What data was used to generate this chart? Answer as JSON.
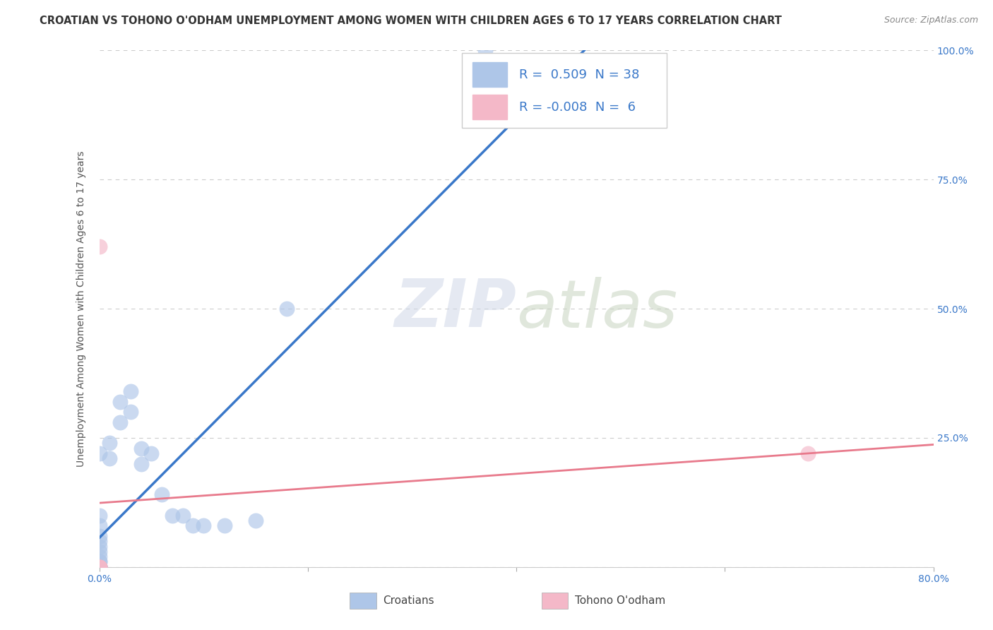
{
  "title": "CROATIAN VS TOHONO O'ODHAM UNEMPLOYMENT AMONG WOMEN WITH CHILDREN AGES 6 TO 17 YEARS CORRELATION CHART",
  "source": "Source: ZipAtlas.com",
  "ylabel": "Unemployment Among Women with Children Ages 6 to 17 years",
  "xlim": [
    0.0,
    0.8
  ],
  "ylim": [
    0.0,
    1.0
  ],
  "croatian_R": 0.509,
  "croatian_N": 38,
  "tohono_R": -0.008,
  "tohono_N": 6,
  "croatian_color": "#aec6e8",
  "tohono_color": "#f4b8c8",
  "croatian_line_color": "#3a78c9",
  "tohono_line_color": "#e87a8c",
  "background_color": "#ffffff",
  "grid_color": "#cccccc",
  "croatian_x": [
    0.0,
    0.0,
    0.0,
    0.0,
    0.0,
    0.0,
    0.0,
    0.0,
    0.0,
    0.0,
    0.0,
    0.0,
    0.0,
    0.0,
    0.0,
    0.0,
    0.0,
    0.0,
    0.0,
    0.0,
    0.01,
    0.01,
    0.02,
    0.02,
    0.03,
    0.03,
    0.04,
    0.04,
    0.05,
    0.06,
    0.07,
    0.08,
    0.09,
    0.1,
    0.12,
    0.15,
    0.18,
    0.37
  ],
  "croatian_y": [
    0.0,
    0.0,
    0.0,
    0.0,
    0.0,
    0.0,
    0.0,
    0.0,
    0.0,
    0.0,
    0.01,
    0.01,
    0.02,
    0.03,
    0.04,
    0.05,
    0.06,
    0.08,
    0.1,
    0.22,
    0.21,
    0.24,
    0.28,
    0.32,
    0.3,
    0.34,
    0.2,
    0.23,
    0.22,
    0.14,
    0.1,
    0.1,
    0.08,
    0.08,
    0.08,
    0.09,
    0.5,
    1.0
  ],
  "tohono_x": [
    0.0,
    0.0,
    0.0,
    0.0,
    0.0,
    0.68
  ],
  "tohono_y": [
    0.0,
    0.0,
    0.0,
    0.0,
    0.62,
    0.22
  ],
  "title_fontsize": 10.5,
  "axis_label_fontsize": 10,
  "tick_fontsize": 10,
  "legend_fontsize": 13,
  "source_fontsize": 9
}
